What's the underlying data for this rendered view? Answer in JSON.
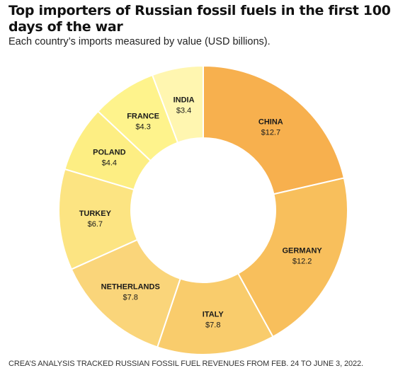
{
  "title": "Top importers of Russian fossil fuels in the first 100 days of the war",
  "subtitle": "Each country’s imports measured by value (USD billions).",
  "footnote": "CREA’S ANALYSIS TRACKED RUSSIAN FOSSIL FUEL REVENUES FROM FEB. 24 TO JUNE 3, 2022.",
  "chart_data": {
    "type": "pie",
    "variant": "donut",
    "title": "Top importers of Russian fossil fuels in the first 100 days of the war",
    "subtitle": "Each country’s imports measured by value (USD billions).",
    "categories": [
      "CHINA",
      "GERMANY",
      "ITALY",
      "NETHERLANDS",
      "TURKEY",
      "POLAND",
      "FRANCE",
      "INDIA"
    ],
    "values": [
      12.7,
      12.2,
      7.8,
      7.8,
      6.7,
      4.4,
      4.3,
      3.4
    ],
    "labels": [
      "$12.7",
      "$12.2",
      "$7.8",
      "$7.8",
      "$6.7",
      "$4.4",
      "$4.3",
      "$3.4"
    ],
    "colors": [
      "#F7B04E",
      "#F8BF5C",
      "#F9CC6C",
      "#FAD57A",
      "#FCE482",
      "#FDEE83",
      "#FEF38C",
      "#FFF6B0"
    ],
    "start": "12 o'clock",
    "direction": "clockwise",
    "legend": "none (labels inside segments)"
  }
}
